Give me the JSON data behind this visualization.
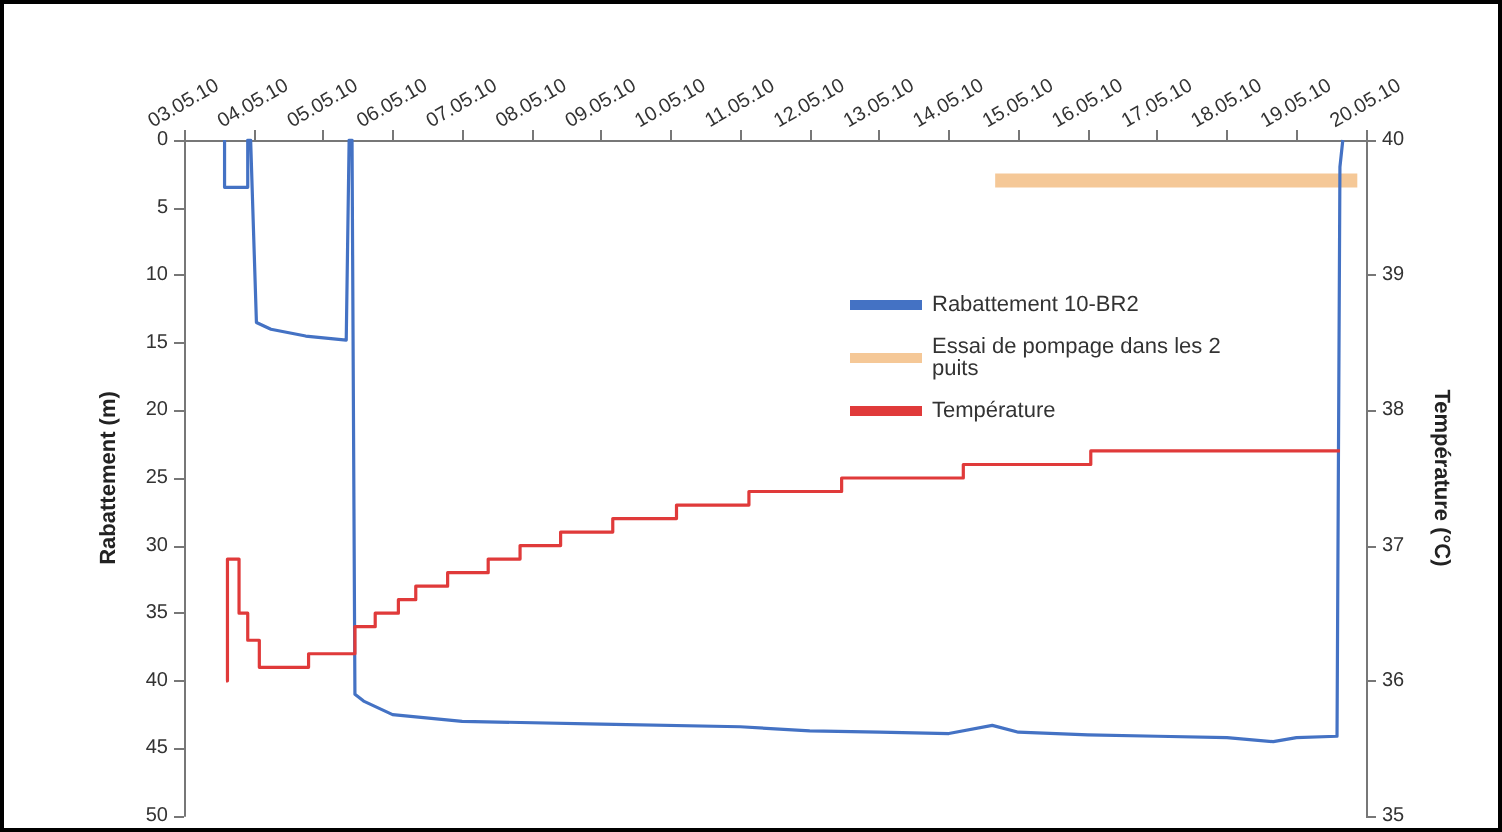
{
  "chart_data": {
    "type": "line",
    "ylabel": "Rabattement (m)",
    "y2label": "Température (°C)",
    "xlim": [
      "--05-03",
      "--05-20"
    ],
    "xticks": [
      {
        "value": "--05-03",
        "label": "03.05.10"
      },
      {
        "value": "--05-04",
        "label": "04.05.10"
      },
      {
        "value": "--05-05",
        "label": "05.05.10"
      },
      {
        "value": "--05-06",
        "label": "06.05.10"
      },
      {
        "value": "--05-07",
        "label": "07.05.10"
      },
      {
        "value": "--05-08",
        "label": "08.05.10"
      },
      {
        "value": "--05-09",
        "label": "09.05.10"
      },
      {
        "value": "--05-10",
        "label": "10.05.10"
      },
      {
        "value": "--05-11",
        "label": "11.05.10"
      },
      {
        "value": "--05-12",
        "label": "12.05.10"
      },
      {
        "value": "--05-13",
        "label": "13.05.10"
      },
      {
        "value": "--05-14",
        "label": "14.05.10"
      },
      {
        "value": "--05-15",
        "label": "15.05.10"
      },
      {
        "value": "--05-16",
        "label": "16.05.10"
      },
      {
        "value": "--05-17",
        "label": "17.05.10"
      },
      {
        "value": "--05-18",
        "label": "18.05.10"
      },
      {
        "value": "--05-19",
        "label": "19.05.10"
      },
      {
        "value": "--05-20",
        "label": "20.05.10"
      }
    ],
    "ylim": [
      50,
      0
    ],
    "yticks": [
      0,
      5,
      10,
      15,
      20,
      25,
      30,
      35,
      40,
      45,
      50
    ],
    "y2lim": [
      35,
      40
    ],
    "y2ticks": [
      35,
      36,
      37,
      38,
      39,
      40
    ],
    "grid": false,
    "legend": "right",
    "marker": "none",
    "line_style": "solid",
    "series": [
      {
        "name": "Rabattement 10-BR2",
        "color": "#4472c4",
        "x": [
          "--05-03T14:00",
          "--05-03T14:00",
          "--05-03T22:00",
          "--05-03T22:00",
          "--05-03T23:00",
          "--05-04T01:00",
          "--05-04T06:00",
          "--05-04T18:00",
          "--05-05T08:00",
          "--05-05T09:00",
          "--05-05T10:00",
          "--05-05T11:00",
          "--05-05T14:00",
          "--05-06T00:00",
          "--05-07T00:00",
          "--05-09T00:00",
          "--05-11T00:00",
          "--05-12T00:00",
          "--05-13T00:00",
          "--05-14T00:00",
          "--05-14T15:00",
          "--05-15T00:00",
          "--05-16T00:00",
          "--05-17T00:00",
          "--05-18T00:00",
          "--05-18T16:00",
          "--05-19T00:00",
          "--05-19T14:00",
          "--05-19T15:00",
          "--05-19T16:00"
        ],
        "values": [
          0,
          3.5,
          3.5,
          0,
          0,
          13.5,
          14,
          14.5,
          14.8,
          0,
          0,
          41,
          41.5,
          42.5,
          43,
          43.2,
          43.4,
          43.7,
          43.8,
          43.9,
          43.3,
          43.8,
          44,
          44.1,
          44.2,
          44.5,
          44.2,
          44.1,
          2,
          0
        ]
      },
      {
        "name": "Essai de pompage dans les 2 puits",
        "color": "#f5c897",
        "x": [
          "--05-14T16:00",
          "--05-19T21:00"
        ],
        "values": [
          3,
          3
        ]
      },
      {
        "name": "Température",
        "type": "step",
        "axis": "y2",
        "color": "#e03a3a",
        "x": [
          "--05-03T14:30",
          "--05-03T15:00",
          "--05-03T19:00",
          "--05-03T22:00",
          "--05-04T02:00",
          "--05-04T19:00",
          "--05-05T11:00",
          "--05-05T18:00",
          "--05-06T02:00",
          "--05-06T08:00",
          "--05-06T19:00",
          "--05-07T09:00",
          "--05-07T20:00",
          "--05-08T10:00",
          "--05-09T04:00",
          "--05-10T02:00",
          "--05-11T03:00",
          "--05-12T11:00",
          "--05-14T05:00",
          "--05-16T01:00",
          "--05-19T15:00"
        ],
        "values": [
          36.0,
          36.9,
          36.5,
          36.3,
          36.1,
          36.2,
          36.4,
          36.5,
          36.6,
          36.7,
          36.8,
          36.9,
          37.0,
          37.1,
          37.2,
          37.3,
          37.4,
          37.5,
          37.6,
          37.7,
          37.7
        ]
      }
    ]
  }
}
